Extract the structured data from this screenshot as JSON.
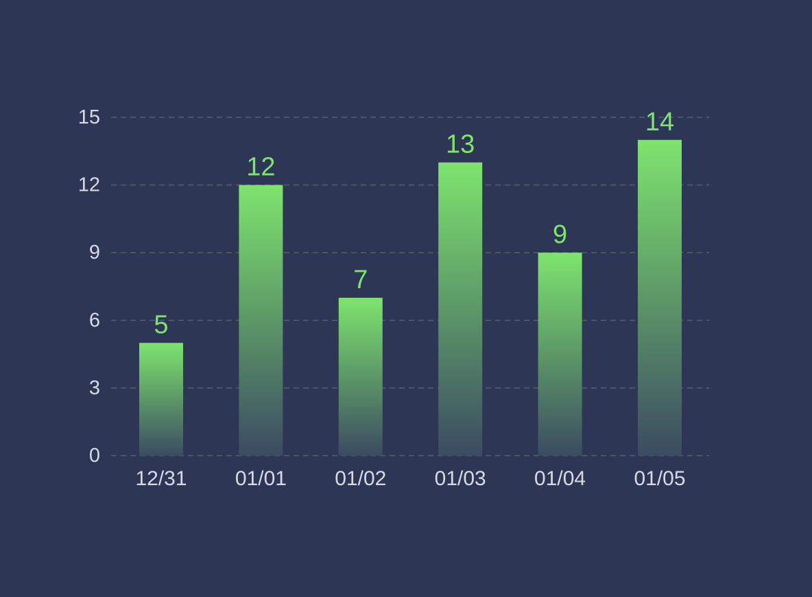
{
  "colors": {
    "background": "#2d3655",
    "bar_top": "#7ee46e",
    "bar_bottom": "#3b4b62",
    "value_label": "#7ee46e",
    "axis_text": "#d8dbe5",
    "grid": "#53606a"
  },
  "chart_data": {
    "type": "bar",
    "categories": [
      "12/31",
      "01/01",
      "01/02",
      "01/03",
      "01/04",
      "01/05"
    ],
    "values": [
      5,
      12,
      7,
      13,
      9,
      14
    ],
    "title": "",
    "xlabel": "",
    "ylabel": "",
    "ylim": [
      0,
      15
    ],
    "yticks": [
      0,
      3,
      6,
      9,
      12,
      15
    ],
    "grid": true,
    "grid_style": "dashed",
    "legend": "none",
    "data_labels": true
  }
}
